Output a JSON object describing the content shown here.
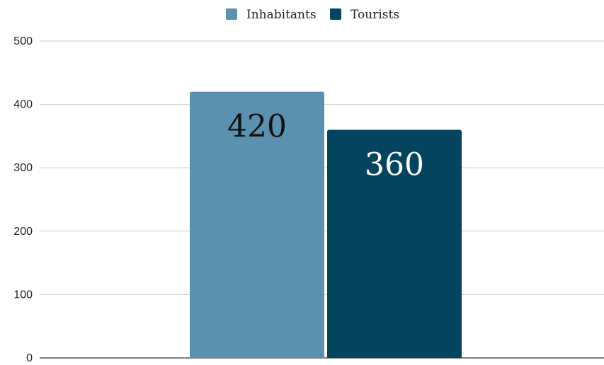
{
  "chart_data": {
    "type": "bar",
    "title": "",
    "xlabel": "",
    "ylabel": "",
    "categories": [
      ""
    ],
    "series": [
      {
        "name": "Inhabitants",
        "values": [
          420
        ],
        "color": "#5b91ae",
        "label_color": "#111111"
      },
      {
        "name": "Tourists",
        "values": [
          360
        ],
        "color": "#04445f",
        "label_color": "#ffffff"
      }
    ],
    "ylim": [
      0,
      500
    ],
    "yticks": [
      0,
      100,
      200,
      300,
      400,
      500
    ],
    "ytick_labels": [
      "0",
      "100",
      "200",
      "300",
      "400",
      "500"
    ],
    "data_labels": [
      "420",
      "360"
    ],
    "grid": true,
    "legend_position": "top-center"
  }
}
